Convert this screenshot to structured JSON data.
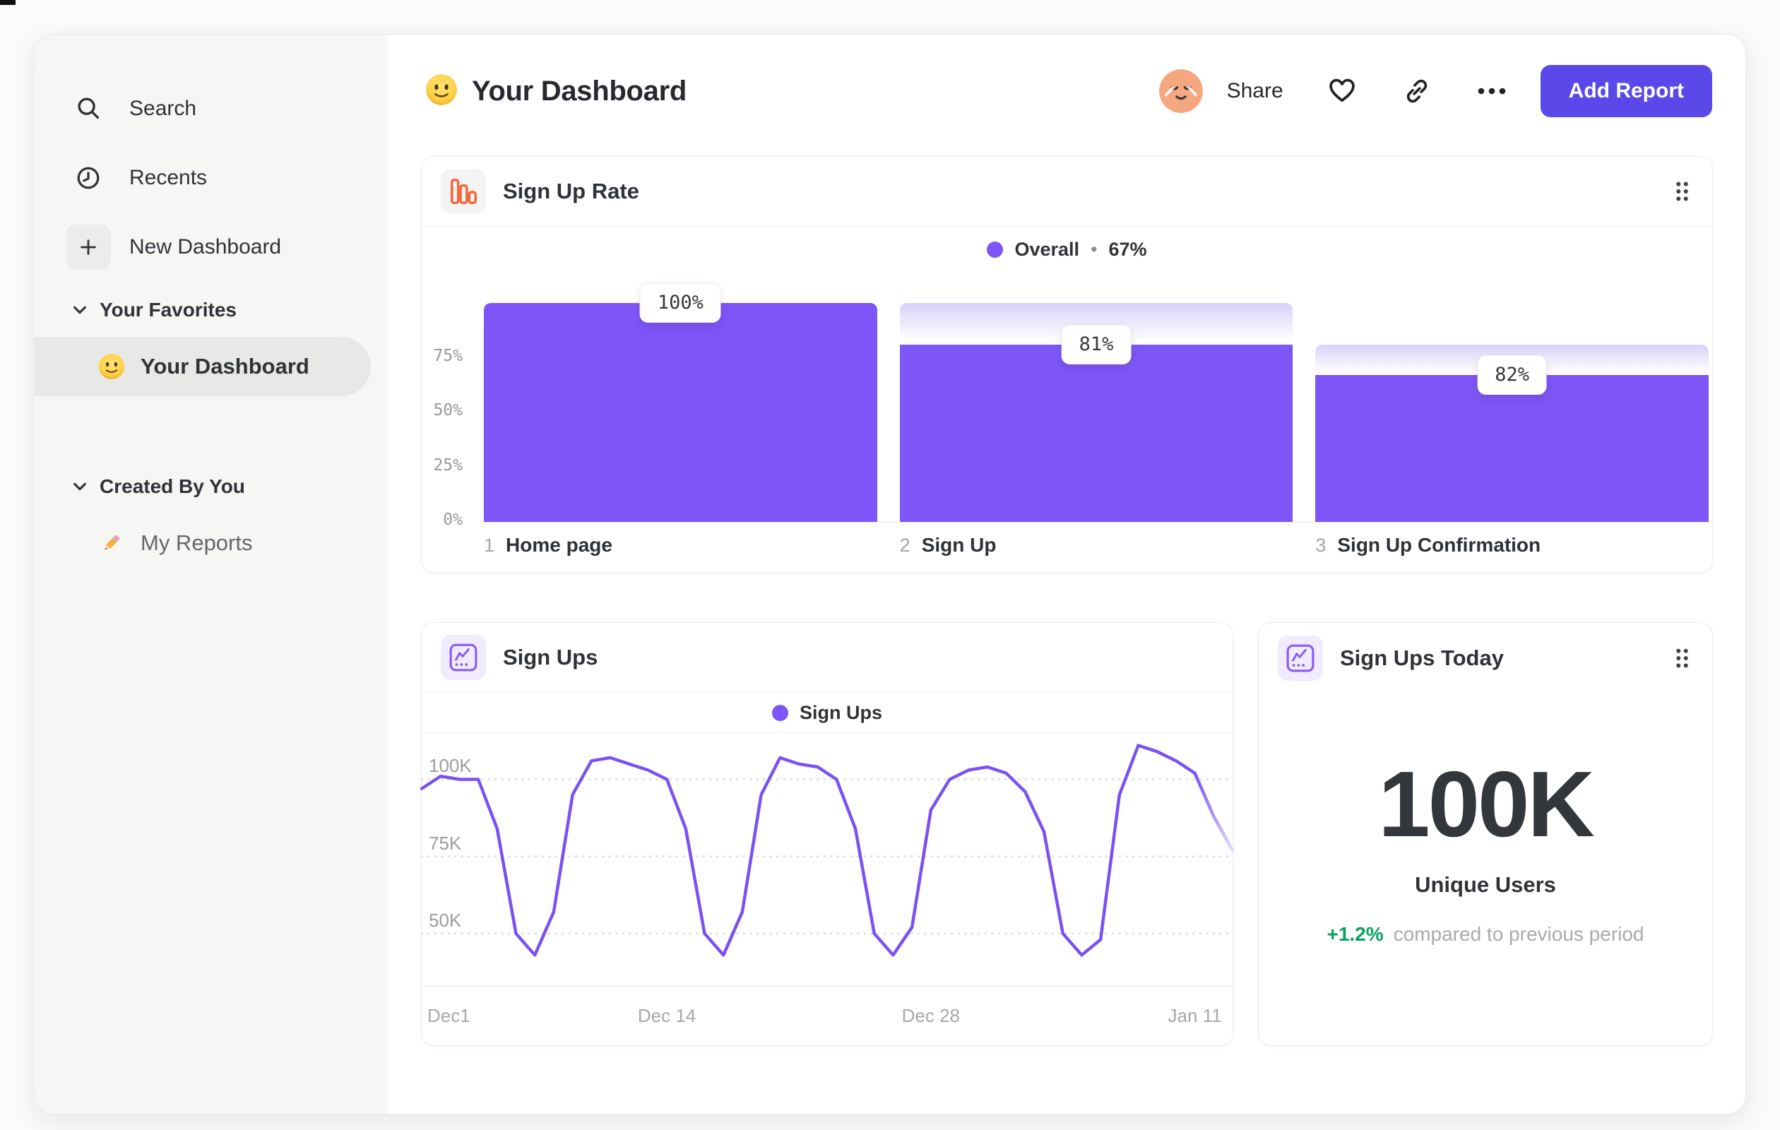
{
  "colors": {
    "accent": "#5A48E8",
    "purple": "#7E55F6",
    "green": "#09A05F",
    "orange": "#F2683C",
    "icon_purple": "#8A5BF6"
  },
  "sidebar": {
    "nav": [
      {
        "label": "Search",
        "icon": "search-icon"
      },
      {
        "label": "Recents",
        "icon": "clock-icon"
      },
      {
        "label": "New Dashboard",
        "icon": "plus-icon",
        "boxed": true
      }
    ],
    "sections": [
      {
        "title": "Your Favorites",
        "items": [
          {
            "label": "Your Dashboard",
            "emoji": "smiley",
            "selected": true
          }
        ]
      },
      {
        "title": "Created By You",
        "items": [
          {
            "label": "My Reports",
            "emoji": "pencil",
            "selected": false,
            "muted": true
          }
        ]
      }
    ]
  },
  "header": {
    "title": "Your Dashboard",
    "actions": {
      "share": "Share",
      "add_report": "Add Report"
    }
  },
  "chart_data": [
    {
      "id": "signup-rate",
      "type": "bar",
      "title": "Sign Up Rate",
      "legend_label": "Overall",
      "legend_sep": "•",
      "legend_value": "67%",
      "categories": [
        "Home page",
        "Sign Up",
        "Sign Up Confirmation"
      ],
      "step_numbers": [
        "1",
        "2",
        "3"
      ],
      "values_pct": [
        100,
        81,
        82
      ],
      "value_labels": [
        "100%",
        "81%",
        "82%"
      ],
      "solid_heights_pct": [
        100,
        81,
        67
      ],
      "carryover_heights_pct": [
        100,
        100,
        81
      ],
      "y_ticks": [
        {
          "label": "75%",
          "value": 75
        },
        {
          "label": "50%",
          "value": 50
        },
        {
          "label": "25%",
          "value": 25
        },
        {
          "label": "0%",
          "value": 0
        }
      ],
      "ylim": [
        0,
        100
      ],
      "grid": false,
      "legend_position": "top-center"
    },
    {
      "id": "sign-ups",
      "type": "line",
      "title": "Sign Ups",
      "legend_label": "Sign Ups",
      "x_ticks": [
        {
          "label": "Dec1",
          "day": 0
        },
        {
          "label": "Dec 14",
          "day": 13
        },
        {
          "label": "Dec 28",
          "day": 27
        },
        {
          "label": "Jan 11",
          "day": 41
        }
      ],
      "y_ticks": [
        {
          "label": "100K",
          "value": 100
        },
        {
          "label": "75K",
          "value": 75
        },
        {
          "label": "50K",
          "value": 50
        }
      ],
      "unit": "K",
      "values": [
        97,
        101,
        100,
        100,
        84,
        50,
        43,
        57,
        95,
        106,
        107,
        105,
        103,
        100,
        84,
        50,
        43,
        57,
        95,
        107,
        105,
        104,
        100,
        84,
        50,
        43,
        52,
        90,
        100,
        103,
        104,
        102,
        96,
        83,
        50,
        43,
        48,
        95,
        111,
        109,
        106,
        102,
        88,
        77
      ],
      "y_range": [
        33,
        115
      ],
      "fade_tail_points": 2,
      "grid": "dotted",
      "legend_position": "top-center"
    },
    {
      "id": "sign-ups-today",
      "type": "metric",
      "title": "Sign Ups Today",
      "value": "100K",
      "value_label": "Unique Users",
      "delta": "+1.2%",
      "delta_note": "compared to previous period"
    }
  ]
}
